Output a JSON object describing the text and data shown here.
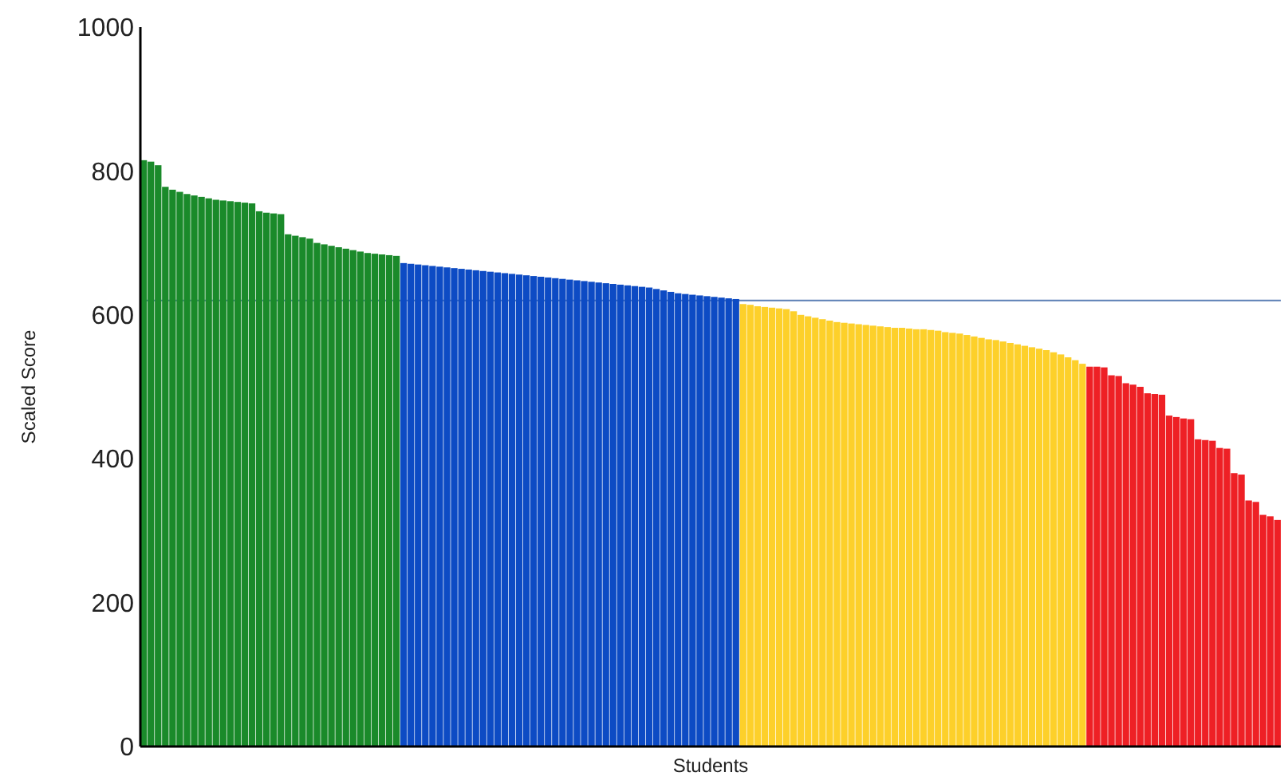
{
  "chart_data": {
    "type": "bar",
    "xlabel": "Students",
    "ylabel": "Scaled Score",
    "categories": [
      null,
      null,
      null,
      null,
      null,
      null,
      null,
      null,
      null,
      null,
      null,
      null,
      null,
      null,
      null,
      null,
      null,
      null,
      null,
      null,
      null,
      null,
      null,
      null,
      null,
      null,
      null,
      null,
      null,
      null,
      null,
      null,
      null,
      null,
      null,
      null,
      null,
      null,
      null,
      null,
      null,
      null,
      null,
      null,
      null,
      null,
      null,
      null,
      null,
      null,
      null,
      null,
      null,
      null,
      null,
      null,
      null,
      null,
      null,
      null,
      null,
      null,
      null,
      null,
      null,
      null,
      null,
      null,
      null,
      null,
      null,
      null,
      null,
      null,
      null,
      null,
      null,
      null,
      null,
      null,
      null,
      null,
      null,
      null,
      null,
      null,
      null,
      null,
      null,
      null,
      null,
      null,
      null,
      null,
      null,
      null,
      null,
      null,
      null,
      null,
      null,
      null,
      null,
      null,
      null,
      null,
      null,
      null,
      null,
      null,
      null,
      null,
      null,
      null,
      null,
      null,
      null,
      null,
      null,
      null,
      null,
      null,
      null,
      null,
      null,
      null,
      null,
      null,
      null,
      null,
      null,
      null,
      null,
      null,
      null,
      null,
      null,
      null,
      null,
      null,
      null,
      null,
      null,
      null,
      null,
      null,
      null,
      null,
      null,
      null,
      null,
      null,
      null,
      null,
      null,
      null,
      null,
      null
    ],
    "values": [
      815,
      813,
      808,
      778,
      774,
      771,
      768,
      766,
      764,
      762,
      760,
      759,
      758,
      757,
      756,
      755,
      744,
      742,
      741,
      740,
      712,
      710,
      708,
      706,
      700,
      698,
      696,
      694,
      692,
      690,
      688,
      686,
      685,
      684,
      683,
      682,
      672,
      671,
      670,
      669,
      668,
      667,
      666,
      665,
      664,
      663,
      662,
      661,
      660,
      659,
      658,
      657,
      656,
      655,
      654,
      653,
      652,
      651,
      650,
      649,
      648,
      647,
      646,
      645,
      644,
      643,
      642,
      641,
      640,
      639,
      638,
      636,
      634,
      632,
      630,
      629,
      628,
      627,
      626,
      625,
      624,
      623,
      622,
      615,
      614,
      612,
      611,
      610,
      609,
      608,
      605,
      600,
      598,
      596,
      594,
      592,
      590,
      589,
      588,
      587,
      586,
      585,
      584,
      583,
      582,
      582,
      581,
      580,
      580,
      579,
      578,
      576,
      575,
      574,
      572,
      570,
      568,
      566,
      565,
      563,
      561,
      559,
      557,
      555,
      553,
      551,
      548,
      545,
      541,
      537,
      532,
      528,
      528,
      527,
      516,
      515,
      505,
      503,
      500,
      491,
      490,
      489,
      460,
      458,
      456,
      455,
      427,
      426,
      425,
      415,
      414,
      380,
      378,
      342,
      340,
      322,
      320,
      315
    ],
    "colors": [
      "#1a8a2a",
      "#1a8a2a",
      "#1a8a2a",
      "#1a8a2a",
      "#1a8a2a",
      "#1a8a2a",
      "#1a8a2a",
      "#1a8a2a",
      "#1a8a2a",
      "#1a8a2a",
      "#1a8a2a",
      "#1a8a2a",
      "#1a8a2a",
      "#1a8a2a",
      "#1a8a2a",
      "#1a8a2a",
      "#1a8a2a",
      "#1a8a2a",
      "#1a8a2a",
      "#1a8a2a",
      "#1a8a2a",
      "#1a8a2a",
      "#1a8a2a",
      "#1a8a2a",
      "#1a8a2a",
      "#1a8a2a",
      "#1a8a2a",
      "#1a8a2a",
      "#1a8a2a",
      "#1a8a2a",
      "#1a8a2a",
      "#1a8a2a",
      "#1a8a2a",
      "#1a8a2a",
      "#1a8a2a",
      "#1a8a2a",
      "#0d4bc4",
      "#0d4bc4",
      "#0d4bc4",
      "#0d4bc4",
      "#0d4bc4",
      "#0d4bc4",
      "#0d4bc4",
      "#0d4bc4",
      "#0d4bc4",
      "#0d4bc4",
      "#0d4bc4",
      "#0d4bc4",
      "#0d4bc4",
      "#0d4bc4",
      "#0d4bc4",
      "#0d4bc4",
      "#0d4bc4",
      "#0d4bc4",
      "#0d4bc4",
      "#0d4bc4",
      "#0d4bc4",
      "#0d4bc4",
      "#0d4bc4",
      "#0d4bc4",
      "#0d4bc4",
      "#0d4bc4",
      "#0d4bc4",
      "#0d4bc4",
      "#0d4bc4",
      "#0d4bc4",
      "#0d4bc4",
      "#0d4bc4",
      "#0d4bc4",
      "#0d4bc4",
      "#0d4bc4",
      "#0d4bc4",
      "#0d4bc4",
      "#0d4bc4",
      "#0d4bc4",
      "#0d4bc4",
      "#0d4bc4",
      "#0d4bc4",
      "#0d4bc4",
      "#0d4bc4",
      "#0d4bc4",
      "#0d4bc4",
      "#0d4bc4",
      "#fdd02a",
      "#fdd02a",
      "#fdd02a",
      "#fdd02a",
      "#fdd02a",
      "#fdd02a",
      "#fdd02a",
      "#fdd02a",
      "#fdd02a",
      "#fdd02a",
      "#fdd02a",
      "#fdd02a",
      "#fdd02a",
      "#fdd02a",
      "#fdd02a",
      "#fdd02a",
      "#fdd02a",
      "#fdd02a",
      "#fdd02a",
      "#fdd02a",
      "#fdd02a",
      "#fdd02a",
      "#fdd02a",
      "#fdd02a",
      "#fdd02a",
      "#fdd02a",
      "#fdd02a",
      "#fdd02a",
      "#fdd02a",
      "#fdd02a",
      "#fdd02a",
      "#fdd02a",
      "#fdd02a",
      "#fdd02a",
      "#fdd02a",
      "#fdd02a",
      "#fdd02a",
      "#fdd02a",
      "#fdd02a",
      "#fdd02a",
      "#fdd02a",
      "#fdd02a",
      "#fdd02a",
      "#fdd02a",
      "#fdd02a",
      "#fdd02a",
      "#fdd02a",
      "#fdd02a",
      "#ee2025",
      "#ee2025",
      "#ee2025",
      "#ee2025",
      "#ee2025",
      "#ee2025",
      "#ee2025",
      "#ee2025",
      "#ee2025",
      "#ee2025",
      "#ee2025",
      "#ee2025",
      "#ee2025",
      "#ee2025",
      "#ee2025",
      "#ee2025",
      "#ee2025",
      "#ee2025",
      "#ee2025",
      "#ee2025",
      "#ee2025",
      "#ee2025",
      "#ee2025",
      "#ee2025",
      "#ee2025",
      "#ee2025",
      "#ee2025"
    ],
    "ylim": [
      0,
      1000
    ],
    "yticks": [
      0,
      200,
      400,
      600,
      800,
      1000
    ],
    "ref_lines": [
      {
        "axis": "y",
        "value": 620,
        "color": "#5b7fb5"
      }
    ]
  }
}
